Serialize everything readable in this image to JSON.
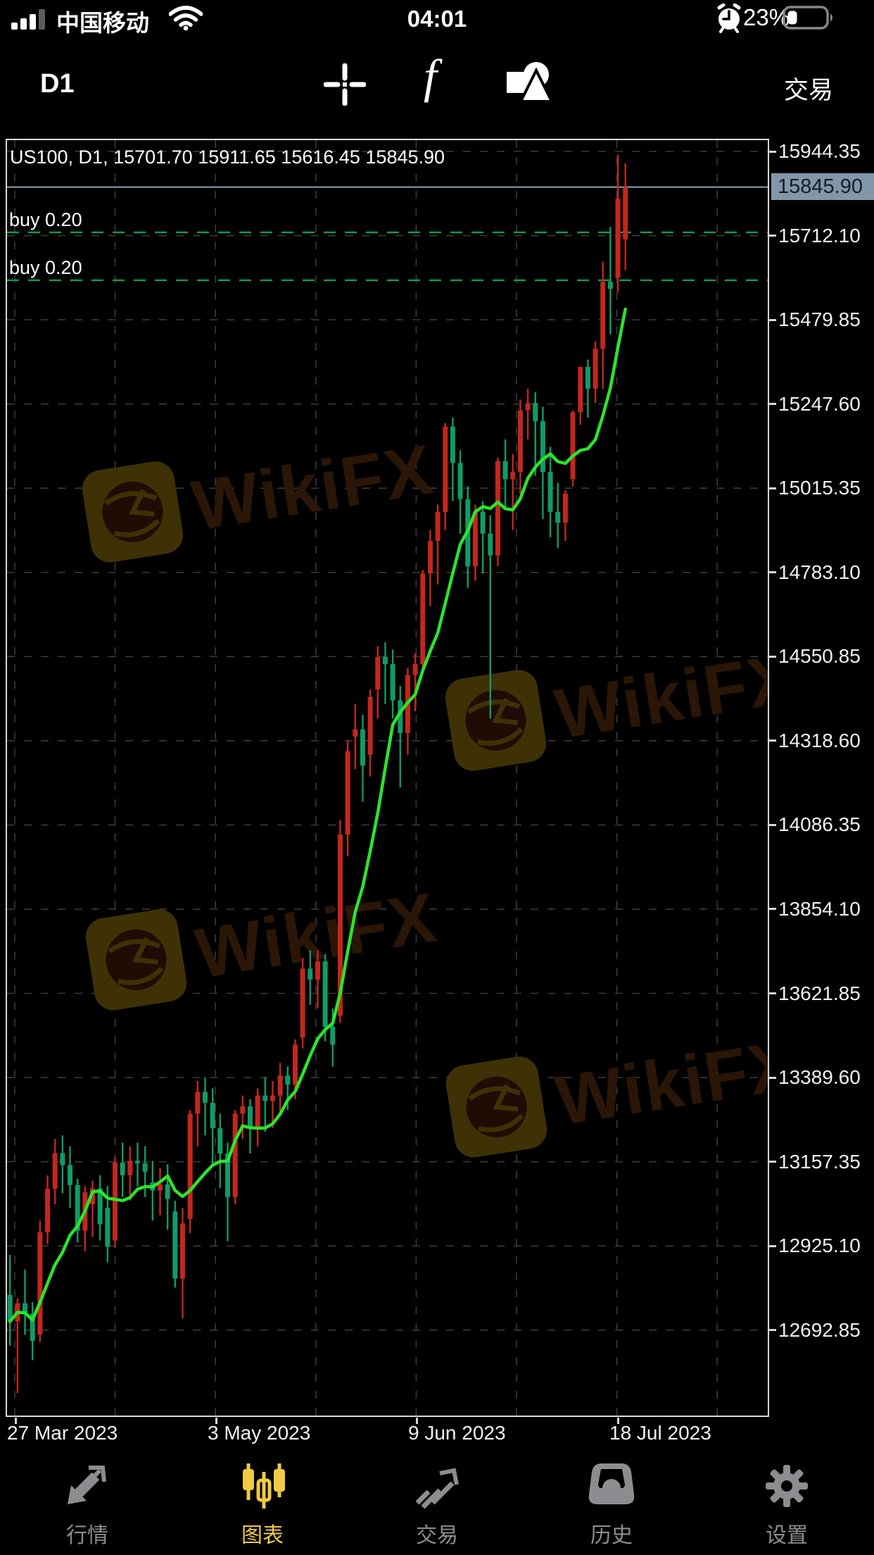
{
  "status_bar": {
    "operator": "中国移动",
    "time": "04:01",
    "battery_percent": "23%",
    "icons": [
      "signal-bars-icon",
      "wifi-icon",
      "alarm-clock-icon",
      "battery-icon"
    ]
  },
  "toolbar": {
    "timeframe_label": "D1",
    "trade_label": "交易",
    "icons": [
      "crosshair-icon",
      "function-icon",
      "shapes-icon"
    ]
  },
  "chart": {
    "info_line": "US100, D1, 15701.70 15911.65 15616.45 15845.90",
    "watermark_text": "WikiFX",
    "current_price_label": "15845.90",
    "positions": [
      {
        "label": "buy 0.20",
        "price": 15721.0
      },
      {
        "label": "buy 0.20",
        "price": 15589.0
      }
    ],
    "axis": {
      "price_labels": [
        "15944.35",
        "15712.10",
        "15479.85",
        "15247.60",
        "15015.35",
        "14783.10",
        "14550.85",
        "14318.60",
        "14086.35",
        "13854.10",
        "13621.85",
        "13389.60",
        "13157.35",
        "12925.10",
        "12692.85"
      ],
      "date_labels": [
        "27 Mar 2023",
        "3 May 2023",
        "9 Jun 2023",
        "18 Jul 2023"
      ]
    }
  },
  "chart_data": {
    "type": "candlestick",
    "symbol": "US100",
    "timeframe": "D1",
    "title": "US100, D1, 15701.70 15911.65 15616.45 15845.90",
    "current_price": 15845.9,
    "price_axis_top_label": 15944.35,
    "price_axis_step": 232.25,
    "price_at_chart_top": 15979.3,
    "price_at_chart_bottom": 12453.9,
    "ma_period": 8,
    "legend": "none",
    "grid": true,
    "colors": {
      "bull": "#c3271d",
      "bear": "#119b66",
      "ma": "#2be52b",
      "grid": "#3a3a3a",
      "buy_line": "#0da04a",
      "price_line": "#8ba3b4",
      "cp_box_bg": "#8297a9",
      "watermark_logo": "#3e3106",
      "watermark_eagle": "#200c04",
      "watermark_text": "#2a1607",
      "tab_active": "#f0ca45",
      "tab_inactive": "#8d8d91"
    },
    "ohlc": [
      [
        12790,
        12900,
        12650,
        12717
      ],
      [
        12717,
        12780,
        12519,
        12767
      ],
      [
        12767,
        12860,
        12680,
        12738
      ],
      [
        12738,
        12770,
        12610,
        12663
      ],
      [
        12680,
        12995,
        12660,
        12963
      ],
      [
        12963,
        13120,
        12930,
        13083
      ],
      [
        13083,
        13220,
        13040,
        13181
      ],
      [
        13181,
        13230,
        13070,
        13148
      ],
      [
        13148,
        13200,
        13030,
        13093
      ],
      [
        13093,
        13110,
        12935,
        12967
      ],
      [
        12967,
        13090,
        12910,
        13074
      ],
      [
        13040,
        13105,
        12950,
        13084
      ],
      [
        13084,
        13120,
        12940,
        12985
      ],
      [
        13030,
        13090,
        12880,
        12923
      ],
      [
        12940,
        13170,
        12920,
        13155
      ],
      [
        13155,
        13210,
        13060,
        13120
      ],
      [
        13120,
        13200,
        13050,
        13160
      ],
      [
        13160,
        13210,
        13090,
        13153
      ],
      [
        13153,
        13200,
        13060,
        13130
      ],
      [
        13100,
        13160,
        12995,
        13078
      ],
      [
        13078,
        13140,
        13010,
        13095
      ],
      [
        13095,
        13150,
        12970,
        13055
      ],
      [
        13020,
        13050,
        12810,
        12835
      ],
      [
        12835,
        13030,
        12725,
        12987
      ],
      [
        13000,
        13300,
        12960,
        13290
      ],
      [
        13290,
        13380,
        13200,
        13350
      ],
      [
        13350,
        13390,
        13230,
        13320
      ],
      [
        13320,
        13360,
        13150,
        13250
      ],
      [
        13250,
        13290,
        13085,
        13180
      ],
      [
        13180,
        13210,
        12938,
        13060
      ],
      [
        13060,
        13300,
        13040,
        13290
      ],
      [
        13290,
        13340,
        13220,
        13310
      ],
      [
        13310,
        13330,
        13180,
        13250
      ],
      [
        13250,
        13360,
        13200,
        13340
      ],
      [
        13340,
        13390,
        13240,
        13325
      ],
      [
        13325,
        13380,
        13250,
        13340
      ],
      [
        13340,
        13430,
        13290,
        13395
      ],
      [
        13395,
        13420,
        13300,
        13370
      ],
      [
        13370,
        13495,
        13330,
        13480
      ],
      [
        13500,
        13720,
        13470,
        13690
      ],
      [
        13690,
        13740,
        13590,
        13660
      ],
      [
        13660,
        13740,
        13580,
        13710
      ],
      [
        13710,
        13730,
        13490,
        13530
      ],
      [
        13530,
        13580,
        13420,
        13480
      ],
      [
        13560,
        14100,
        13540,
        14060
      ],
      [
        14060,
        14320,
        14000,
        14290
      ],
      [
        14330,
        14420,
        14240,
        14350
      ],
      [
        14350,
        14390,
        14150,
        14250
      ],
      [
        14280,
        14460,
        14220,
        14440
      ],
      [
        14460,
        14580,
        14380,
        14550
      ],
      [
        14550,
        14590,
        14420,
        14530
      ],
      [
        14530,
        14570,
        14380,
        14430
      ],
      [
        14430,
        14470,
        14190,
        14340
      ],
      [
        14340,
        14520,
        14280,
        14500
      ],
      [
        14500,
        14560,
        14400,
        14530
      ],
      [
        14530,
        14790,
        14510,
        14780
      ],
      [
        14780,
        14900,
        14690,
        14870
      ],
      [
        14870,
        14970,
        14750,
        14950
      ],
      [
        14950,
        15195,
        14900,
        15185
      ],
      [
        15185,
        15210,
        14980,
        15085
      ],
      [
        15085,
        15120,
        14890,
        14985
      ],
      [
        14985,
        15020,
        14740,
        14800
      ],
      [
        14800,
        14970,
        14760,
        14950
      ],
      [
        14950,
        14980,
        14780,
        14890
      ],
      [
        14890,
        14940,
        14380,
        14830
      ],
      [
        14830,
        15100,
        14800,
        15090
      ],
      [
        15090,
        15150,
        14960,
        15040
      ],
      [
        15040,
        15110,
        14900,
        15060
      ],
      [
        15060,
        15260,
        15000,
        15230
      ],
      [
        15230,
        15290,
        15150,
        15250
      ],
      [
        15250,
        15280,
        15050,
        15200
      ],
      [
        15200,
        15240,
        14930,
        15060
      ],
      [
        15060,
        15130,
        14880,
        14950
      ],
      [
        14950,
        15030,
        14850,
        14920
      ],
      [
        14920,
        15010,
        14870,
        15000
      ],
      [
        15040,
        15230,
        15020,
        15225
      ],
      [
        15225,
        15350,
        15190,
        15350
      ],
      [
        15350,
        15370,
        15210,
        15290
      ],
      [
        15290,
        15420,
        15250,
        15400
      ],
      [
        15400,
        15640,
        15290,
        15585
      ],
      [
        15585,
        15736,
        15440,
        15565
      ],
      [
        15596,
        15935,
        15555,
        15814
      ],
      [
        15701.7,
        15911.65,
        15616.45,
        15845.9
      ]
    ]
  },
  "tab_bar": {
    "items": [
      {
        "label": "行情",
        "icon": "quotes-arrows-icon",
        "active": false
      },
      {
        "label": "图表",
        "icon": "candlestick-chart-icon",
        "active": true
      },
      {
        "label": "交易",
        "icon": "trade-arrow-icon",
        "active": false
      },
      {
        "label": "历史",
        "icon": "history-tray-icon",
        "active": false
      },
      {
        "label": "设置",
        "icon": "gear-icon",
        "active": false
      }
    ]
  }
}
